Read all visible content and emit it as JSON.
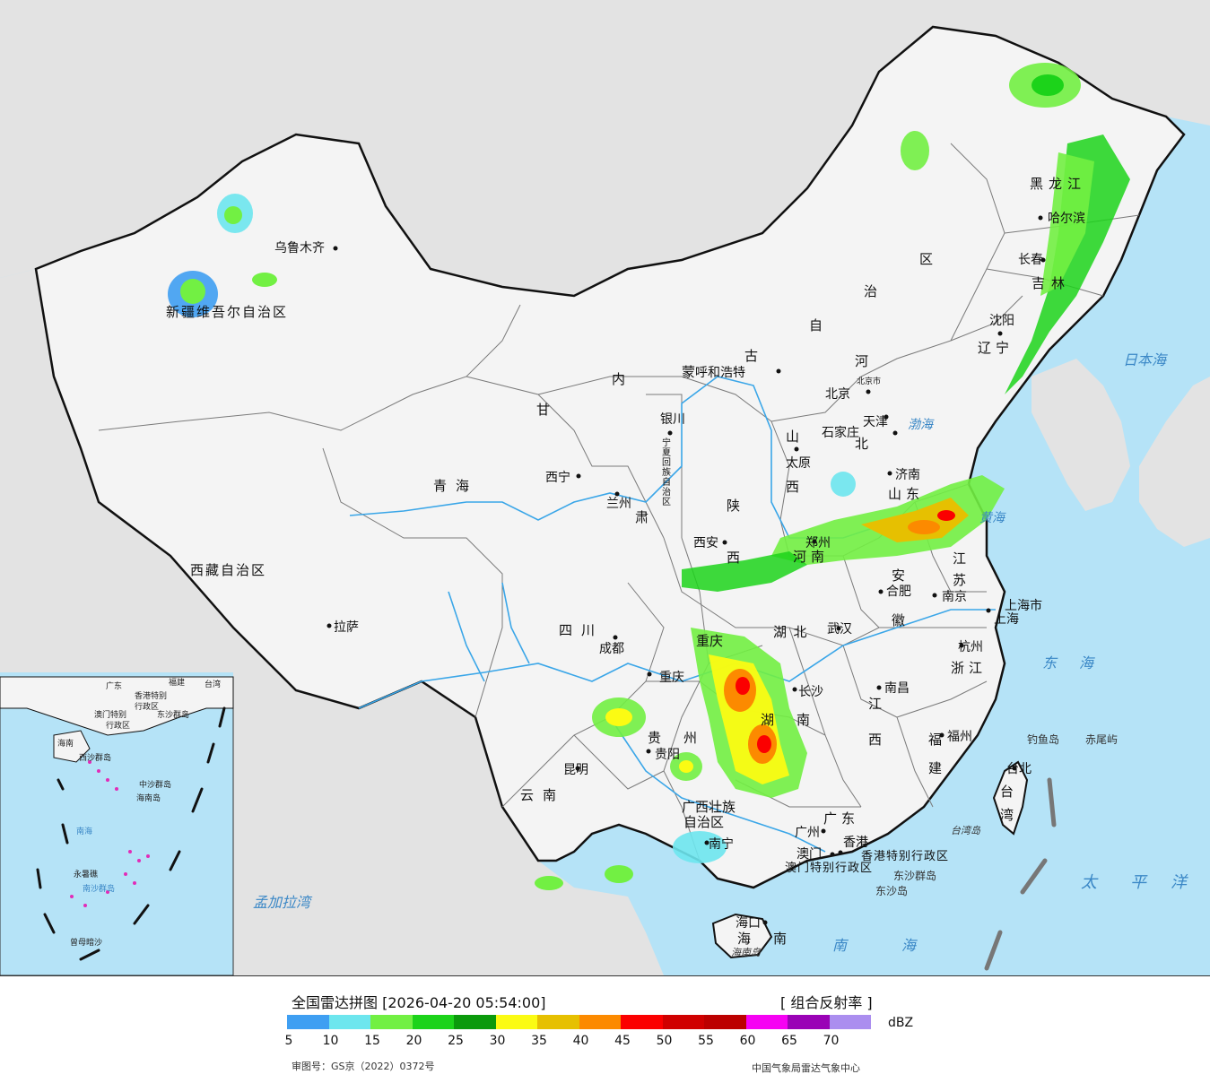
{
  "map": {
    "colors": {
      "land": "#f4f4f4",
      "land_outer": "#e3e3e3",
      "sea": "#b5e3f7",
      "border": "#111111",
      "province": "#7a7a7a",
      "river": "#3aa6e8"
    },
    "province_labels": [
      "新疆维吾尔自治区",
      "西藏自治区",
      "青海",
      "甘肃",
      "内蒙古",
      "自治区",
      "黑龙江",
      "吉林",
      "辽宁",
      "河北",
      "山西",
      "山东",
      "河南",
      "陕西",
      "四川",
      "重庆",
      "湖北",
      "湖南",
      "江西",
      "安徽",
      "江苏",
      "浙江",
      "福建",
      "广东",
      "广西壮族",
      "自治区",
      "贵州",
      "云南",
      "海南",
      "台湾",
      "宁夏回族自治区"
    ],
    "cities": [
      "乌鲁木齐",
      "拉萨",
      "西宁",
      "兰州",
      "银川",
      "呼和浩特",
      "北京",
      "北京市",
      "天津",
      "石家庄",
      "太原",
      "济南",
      "郑州",
      "西安",
      "成都",
      "重庆",
      "武汉",
      "长沙",
      "合肥",
      "南京",
      "上海",
      "上海市",
      "杭州",
      "南昌",
      "福州",
      "贵阳",
      "昆明",
      "南宁",
      "广州",
      "澳门",
      "香港",
      "海口",
      "哈尔滨",
      "长春",
      "沈阳",
      "台北"
    ],
    "sea_labels": [
      "日本海",
      "渤海",
      "黄海",
      "东海",
      "南海",
      "太平洋",
      "孟加拉湾",
      "台湾岛",
      "海南岛"
    ],
    "islands": [
      "钓鱼岛",
      "赤尾屿",
      "东沙群岛",
      "东沙岛"
    ],
    "special_regions": [
      "香港特别行政区",
      "澳门特别行政区"
    ],
    "inset": {
      "labels": [
        "广东",
        "福建",
        "台湾",
        "香港特别",
        "行政区",
        "澳门特别",
        "行政区",
        "东沙群岛",
        "海南",
        "西沙群岛",
        "中沙群岛",
        "南海",
        "南沙群岛",
        "永暑礁",
        "曾母暗沙",
        "海南岛"
      ]
    }
  },
  "legend": {
    "title": "全国雷达拼图 [2026-04-20 05:54:00]",
    "product": "[ 组合反射率 ]",
    "unit": "dBZ",
    "approval": "审图号：GS京（2022）0372号",
    "source": "中国气象局雷达气象中心",
    "ticks": [
      "5",
      "10",
      "15",
      "20",
      "25",
      "30",
      "35",
      "40",
      "45",
      "50",
      "55",
      "60",
      "65",
      "70"
    ],
    "colors": [
      "#3f9ff2",
      "#6de6ee",
      "#72f043",
      "#1cd31a",
      "#0b9a0c",
      "#fbfb13",
      "#e6c001",
      "#fc8a00",
      "#fb0000",
      "#d00000",
      "#bc0000",
      "#f602f3",
      "#9a03b6",
      "#ab8eef"
    ]
  }
}
